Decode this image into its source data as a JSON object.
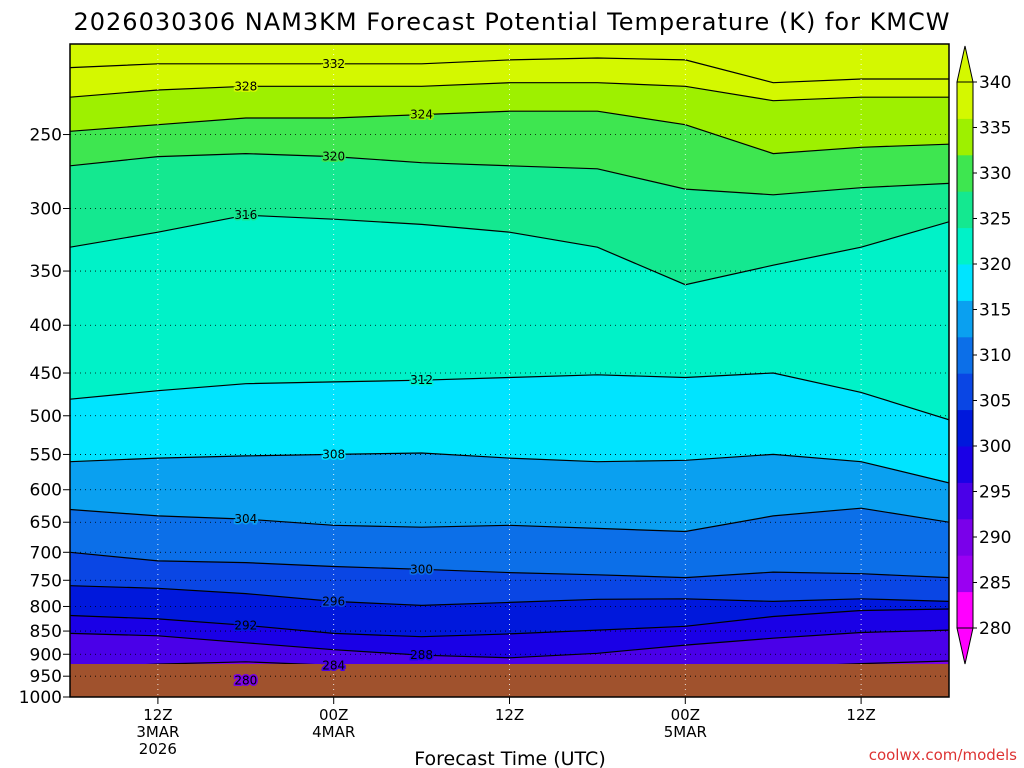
{
  "chart_data": {
    "type": "contour",
    "title": "2026030306 NAM3KM Forecast Potential Temperature (K) for KMCW",
    "xlabel": "Forecast Time (UTC)",
    "ylabel": "",
    "credit": "coolwx.com/models",
    "y_ticks": [
      250,
      300,
      350,
      400,
      450,
      500,
      550,
      600,
      650,
      700,
      750,
      800,
      850,
      900,
      950,
      1000
    ],
    "y_scale": "log",
    "y_range_hpa": [
      200,
      1000
    ],
    "x_range_hours": [
      6,
      66
    ],
    "x_ticks": [
      {
        "hour": 12,
        "lines": [
          "12Z",
          "3MAR",
          "2026"
        ]
      },
      {
        "hour": 24,
        "lines": [
          "00Z",
          "4MAR"
        ]
      },
      {
        "hour": 36,
        "lines": [
          "12Z"
        ]
      },
      {
        "hour": 48,
        "lines": [
          "00Z",
          "5MAR"
        ]
      },
      {
        "hour": 60,
        "lines": [
          "12Z"
        ]
      }
    ],
    "grid": "dotted",
    "colorbar": {
      "ticks": [
        280,
        285,
        290,
        295,
        300,
        305,
        310,
        315,
        320,
        325,
        330,
        335,
        340
      ],
      "colors": [
        "#ff00ff",
        "#9a00f2",
        "#7a00ea",
        "#4a00e8",
        "#1a00e6",
        "#0018dc",
        "#0a46e4",
        "#0c6fe8",
        "#0aa0f0",
        "#00e4ff",
        "#00f2c8",
        "#14e890",
        "#3ee650",
        "#9ef000",
        "#d4f800"
      ]
    },
    "ground_color": "#a0522d",
    "contours": [
      {
        "level": 280,
        "label": "280",
        "profile": [
          [
            6,
            970
          ],
          [
            12,
            965
          ],
          [
            18,
            960
          ],
          [
            24,
            966
          ],
          [
            30,
            970
          ],
          [
            36,
            962
          ],
          [
            42,
            956
          ],
          [
            48,
            963
          ],
          [
            54,
            968
          ],
          [
            60,
            964
          ],
          [
            66,
            960
          ]
        ]
      },
      {
        "level": 284,
        "label": "284",
        "profile": [
          [
            6,
            930
          ],
          [
            12,
            922
          ],
          [
            18,
            917
          ],
          [
            24,
            925
          ],
          [
            30,
            935
          ],
          [
            36,
            942
          ],
          [
            42,
            946
          ],
          [
            48,
            936
          ],
          [
            54,
            929
          ],
          [
            60,
            921
          ],
          [
            66,
            915
          ]
        ]
      },
      {
        "level": 288,
        "label": "288",
        "profile": [
          [
            6,
            855
          ],
          [
            12,
            860
          ],
          [
            18,
            875
          ],
          [
            24,
            890
          ],
          [
            30,
            902
          ],
          [
            36,
            908
          ],
          [
            42,
            898
          ],
          [
            48,
            880
          ],
          [
            54,
            865
          ],
          [
            60,
            853
          ],
          [
            66,
            848
          ]
        ]
      },
      {
        "level": 292,
        "label": "292",
        "profile": [
          [
            6,
            818
          ],
          [
            12,
            825
          ],
          [
            18,
            838
          ],
          [
            24,
            855
          ],
          [
            30,
            862
          ],
          [
            36,
            856
          ],
          [
            42,
            848
          ],
          [
            48,
            840
          ],
          [
            54,
            820
          ],
          [
            60,
            808
          ],
          [
            66,
            805
          ]
        ]
      },
      {
        "level": 296,
        "label": "296",
        "profile": [
          [
            6,
            760
          ],
          [
            12,
            765
          ],
          [
            18,
            775
          ],
          [
            24,
            790
          ],
          [
            30,
            798
          ],
          [
            36,
            792
          ],
          [
            42,
            786
          ],
          [
            48,
            785
          ],
          [
            54,
            790
          ],
          [
            60,
            785
          ],
          [
            66,
            790
          ]
        ]
      },
      {
        "level": 300,
        "label": "300",
        "profile": [
          [
            6,
            700
          ],
          [
            12,
            715
          ],
          [
            18,
            718
          ],
          [
            24,
            725
          ],
          [
            30,
            730
          ],
          [
            36,
            736
          ],
          [
            42,
            740
          ],
          [
            48,
            745
          ],
          [
            54,
            735
          ],
          [
            60,
            738
          ],
          [
            66,
            745
          ]
        ]
      },
      {
        "level": 304,
        "label": "304",
        "profile": [
          [
            6,
            630
          ],
          [
            12,
            640
          ],
          [
            18,
            645
          ],
          [
            24,
            655
          ],
          [
            30,
            658
          ],
          [
            36,
            655
          ],
          [
            42,
            660
          ],
          [
            48,
            665
          ],
          [
            54,
            640
          ],
          [
            60,
            628
          ],
          [
            66,
            650
          ]
        ]
      },
      {
        "level": 308,
        "label": "308",
        "profile": [
          [
            6,
            560
          ],
          [
            12,
            555
          ],
          [
            18,
            552
          ],
          [
            24,
            550
          ],
          [
            30,
            548
          ],
          [
            36,
            555
          ],
          [
            42,
            560
          ],
          [
            48,
            558
          ],
          [
            54,
            550
          ],
          [
            60,
            560
          ],
          [
            66,
            590
          ]
        ]
      },
      {
        "level": 312,
        "label": "312",
        "profile": [
          [
            6,
            480
          ],
          [
            12,
            470
          ],
          [
            18,
            462
          ],
          [
            24,
            460
          ],
          [
            30,
            458
          ],
          [
            36,
            455
          ],
          [
            42,
            452
          ],
          [
            48,
            455
          ],
          [
            54,
            450
          ],
          [
            60,
            472
          ],
          [
            66,
            505
          ]
        ]
      },
      {
        "level": 316,
        "label": "316",
        "profile": [
          [
            6,
            330
          ],
          [
            12,
            318
          ],
          [
            18,
            305
          ],
          [
            24,
            308
          ],
          [
            30,
            312
          ],
          [
            36,
            318
          ],
          [
            42,
            330
          ],
          [
            48,
            362
          ],
          [
            54,
            345
          ],
          [
            60,
            330
          ],
          [
            66,
            310
          ]
        ]
      },
      {
        "level": 320,
        "label": "320",
        "profile": [
          [
            6,
            270
          ],
          [
            12,
            264
          ],
          [
            18,
            262
          ],
          [
            24,
            264
          ],
          [
            30,
            268
          ],
          [
            36,
            270
          ],
          [
            42,
            272
          ],
          [
            48,
            286
          ],
          [
            54,
            290
          ],
          [
            60,
            285
          ],
          [
            66,
            282
          ]
        ]
      },
      {
        "level": 324,
        "label": "324",
        "profile": [
          [
            6,
            248
          ],
          [
            12,
            244
          ],
          [
            18,
            240
          ],
          [
            24,
            240
          ],
          [
            30,
            238
          ],
          [
            36,
            236
          ],
          [
            42,
            236
          ],
          [
            48,
            244
          ],
          [
            54,
            262
          ],
          [
            60,
            258
          ],
          [
            66,
            256
          ]
        ]
      },
      {
        "level": 328,
        "label": "328",
        "profile": [
          [
            6,
            228
          ],
          [
            12,
            224
          ],
          [
            18,
            222
          ],
          [
            24,
            222
          ],
          [
            30,
            222
          ],
          [
            36,
            220
          ],
          [
            42,
            220
          ],
          [
            48,
            222
          ],
          [
            54,
            230
          ],
          [
            60,
            228
          ],
          [
            66,
            228
          ]
        ]
      },
      {
        "level": 332,
        "label": "332",
        "profile": [
          [
            6,
            212
          ],
          [
            12,
            210
          ],
          [
            18,
            210
          ],
          [
            24,
            210
          ],
          [
            30,
            210
          ],
          [
            36,
            208
          ],
          [
            42,
            207
          ],
          [
            48,
            208
          ],
          [
            54,
            220
          ],
          [
            60,
            218
          ],
          [
            66,
            218
          ]
        ]
      }
    ]
  }
}
